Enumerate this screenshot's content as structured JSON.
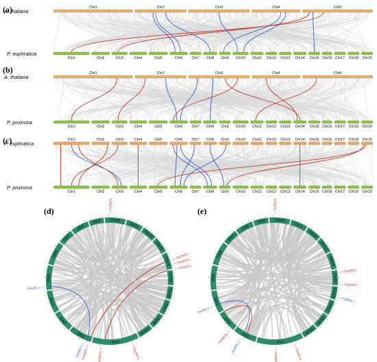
{
  "panels": {
    "a": {
      "label": "(a)",
      "top_species": "A. thaliana",
      "bottom_species": "P. euphratica",
      "top_chr": [
        "Chr1",
        "Chr2",
        "Chr3",
        "Chr4",
        "Chr5"
      ],
      "bottom_chr": [
        "Chr1",
        "Chr2",
        "Chr3",
        "Chr4",
        "Chr5",
        "Chr6",
        "Chr7",
        "Chr8",
        "Chr9",
        "Chr10",
        "Chr11",
        "Chr12",
        "Chr13",
        "Chr14",
        "Chr15",
        "Chr16",
        "Chr17",
        "Chr18",
        "Chr19"
      ]
    },
    "b": {
      "label": "(b)",
      "top_species": "A. thaliana",
      "bottom_species": "P.  pruinosa",
      "top_chr": [
        "Chr1",
        "Chr2",
        "Chr3",
        "Chr4",
        "Chr5"
      ],
      "bottom_chr": [
        "Chr1",
        "Chr2",
        "Chr3",
        "Chr4",
        "Chr5",
        "Chr6",
        "Chr7",
        "Chr8",
        "Chr9",
        "Chr10",
        "Chr11",
        "Chr12",
        "Chr13",
        "Chr14",
        "Chr15",
        "Chr16",
        "Chr17",
        "Chr18",
        "Chr19"
      ]
    },
    "c": {
      "label": "(c)",
      "top_species": "P. euphratica",
      "bottom_species": "P.  pruinosa",
      "top_chr": [
        "Chr1",
        "Chr2",
        "Chr3",
        "Chr4",
        "Chr5",
        "Chr6",
        "Chr7",
        "Chr8",
        "Chr9",
        "Chr10",
        "Chr11",
        "Chr12",
        "Chr13",
        "Chr14",
        "Chr15",
        "Chr16",
        "Chr17",
        "Chr18",
        "Chr19"
      ],
      "bottom_chr": [
        "Chr1",
        "Chr2",
        "Chr3",
        "Chr4",
        "Chr5",
        "Chr6",
        "Chr7",
        "Chr8",
        "Chr9",
        "Chr10",
        "Chr11",
        "Chr12",
        "Chr13",
        "Chr14",
        "Chr15",
        "Chr16",
        "Chr17",
        "Chr18",
        "Chr19"
      ]
    },
    "d": {
      "label": "(d)",
      "chr": [
        "Chr1",
        "Chr2",
        "Chr3",
        "Chr4",
        "Chr5",
        "Chr6",
        "Chr7",
        "Chr8",
        "Chr9",
        "Chr10",
        "Chr11",
        "Chr12",
        "Chr13",
        "Chr14",
        "Chr15",
        "Chr16",
        "Chr17",
        "Chr18",
        "Chr19"
      ],
      "genes_red": [
        "PeDMT1",
        "PeDMT2",
        "PeDMT3",
        "PeDMT4",
        "PeDMT5",
        "PeDMT6",
        "PeDMT7"
      ],
      "genes_blue": [
        "PeDML1",
        "PeDML2"
      ]
    },
    "e": {
      "label": "(e)",
      "chr": [
        "Chr1",
        "Chr2",
        "Chr3",
        "Chr4",
        "Chr5",
        "Chr6",
        "Chr7",
        "Chr8",
        "Chr9",
        "Chr10",
        "Chr11",
        "Chr12",
        "Chr13",
        "Chr14",
        "Chr15",
        "Chr16",
        "Chr17",
        "Chr18",
        "Chr19"
      ],
      "genes_red": [
        "PpDMT1",
        "PpDMT2",
        "PpDMT3",
        "PpDMT4",
        "PpDMT5",
        "PpDMT6"
      ],
      "genes_blue": [
        "PpDML1",
        "PpDML2",
        "PpDML3"
      ]
    }
  },
  "colors": {
    "arabidopsis_bar": "#e8b46a",
    "euphratica_bar": "#8cc63f",
    "euphratica_top_bar": "#f0a860",
    "ideogram": "#2e8b6a",
    "synteny_bg": "#d9d9d9",
    "link_red": "#c0392b",
    "link_blue": "#3a5fcd"
  }
}
